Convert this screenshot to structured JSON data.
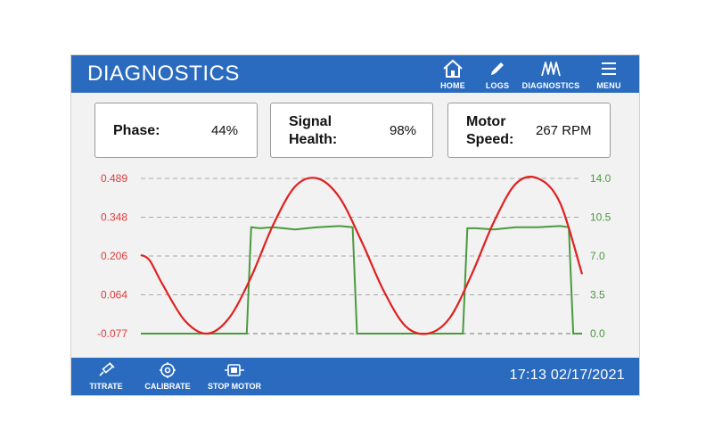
{
  "header": {
    "title": "DIAGNOSTICS",
    "nav": [
      {
        "label": "HOME",
        "icon": "home-icon"
      },
      {
        "label": "LOGS",
        "icon": "pencil-icon"
      },
      {
        "label": "DIAGNOSTICS",
        "icon": "waveform-icon"
      },
      {
        "label": "MENU",
        "icon": "hamburger-menu-icon"
      }
    ]
  },
  "cards": [
    {
      "label_line1": "Phase:",
      "label_line2": "",
      "value": "44%"
    },
    {
      "label_line1": "Signal",
      "label_line2": "Health:",
      "value": "98%"
    },
    {
      "label_line1": "Motor",
      "label_line2": "Speed:",
      "value": "267 RPM"
    }
  ],
  "footer": {
    "actions": [
      {
        "label": "TITRATE",
        "icon": "syringe-icon"
      },
      {
        "label": "CALIBRATE",
        "icon": "target-icon"
      },
      {
        "label": "STOP MOTOR",
        "icon": "motor-icon"
      }
    ],
    "datetime": "17:13 02/17/2021"
  },
  "colors": {
    "brand": "#2a6bbf",
    "left_axis": "#e03b3b",
    "right_axis": "#4a9a3e",
    "sine": "#e02020",
    "square": "#4a9a3e"
  },
  "chart_data": {
    "type": "line",
    "title": "",
    "xlabel": "",
    "ylabel_left": "",
    "ylabel_right": "",
    "grid": true,
    "y_left": {
      "ticks": [
        "0.489",
        "0.348",
        "0.206",
        "0.064",
        "-0.077"
      ],
      "range": [
        -0.077,
        0.489
      ]
    },
    "y_right": {
      "ticks": [
        "14.0",
        "10.5",
        "7.0",
        "3.5",
        "0.0"
      ],
      "range": [
        0.0,
        14.0
      ]
    },
    "x_range": [
      0,
      100
    ],
    "series": [
      {
        "axis": "left",
        "x": [
          0,
          2,
          5,
          10,
          15,
          20,
          25,
          30,
          35,
          40,
          45,
          50,
          55,
          60,
          65,
          70,
          75,
          80,
          85,
          90,
          95,
          100
        ],
        "values": [
          0.21,
          0.19,
          0.1,
          -0.03,
          -0.077,
          -0.02,
          0.13,
          0.32,
          0.46,
          0.489,
          0.42,
          0.26,
          0.08,
          -0.05,
          -0.077,
          -0.02,
          0.14,
          0.33,
          0.47,
          0.489,
          0.4,
          0.14
        ]
      },
      {
        "axis": "right",
        "x": [
          0,
          24,
          25,
          27,
          30,
          35,
          40,
          45,
          48,
          49,
          50,
          73,
          74,
          76,
          80,
          85,
          90,
          95,
          97,
          98,
          100
        ],
        "values": [
          0.0,
          0.0,
          9.6,
          9.5,
          9.6,
          9.4,
          9.6,
          9.7,
          9.6,
          0.0,
          0.0,
          0.0,
          9.5,
          9.5,
          9.4,
          9.6,
          9.6,
          9.7,
          9.6,
          0.0,
          0.0
        ]
      }
    ]
  }
}
